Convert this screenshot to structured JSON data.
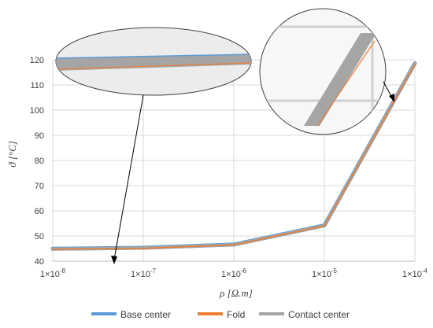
{
  "chart_data": {
    "type": "line",
    "xlabel": "ρ [Ω.m]",
    "ylabel": "ϑ [°C]",
    "x_scale": "log",
    "x": [
      1e-08,
      1e-07,
      1e-06,
      1e-05,
      0.0001
    ],
    "x_tick_labels": [
      {
        "base": "1×10",
        "exp": "-8"
      },
      {
        "base": "1×10",
        "exp": "-7"
      },
      {
        "base": "1×10",
        "exp": "-6"
      },
      {
        "base": "1×10",
        "exp": "-5"
      },
      {
        "base": "1×10",
        "exp": "-4"
      }
    ],
    "ylim": [
      40,
      120
    ],
    "y_ticks": [
      40,
      50,
      60,
      70,
      80,
      90,
      100,
      110,
      120
    ],
    "grid": true,
    "legend_position": "bottom",
    "series": [
      {
        "name": "Base center",
        "color": "#5b9bd5",
        "values": [
          44.9,
          45.3,
          46.6,
          54.2,
          118.6
        ]
      },
      {
        "name": "Fold",
        "color": "#ed7d31",
        "values": [
          44.7,
          45.1,
          46.4,
          54.0,
          118.3
        ]
      },
      {
        "name": "Contact center",
        "color": "#a5a5a5",
        "values": [
          44.8,
          45.2,
          46.5,
          54.1,
          118.5
        ]
      }
    ],
    "insets": [
      "zoom of the curves near ρ = 1×10^-8",
      "zoom of the curves near ρ = 1×10^-4"
    ]
  }
}
